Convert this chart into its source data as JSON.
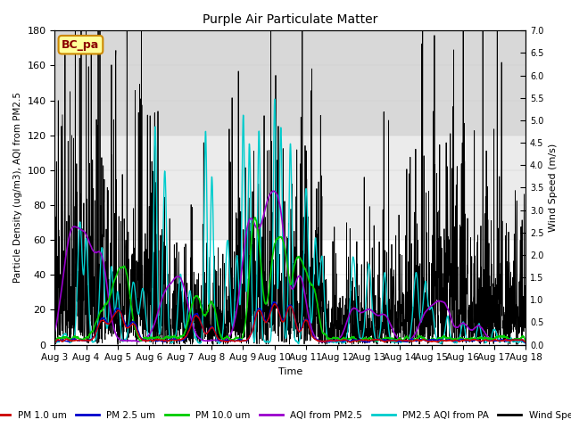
{
  "title": "Purple Air Particulate Matter",
  "xlabel": "Time",
  "ylabel_left": "Particle Density (ug/m3), AQI from PM2.5",
  "ylabel_right": "Wind Speed (m/s)",
  "ylim_left": [
    0,
    180
  ],
  "ylim_right": [
    0,
    7.0
  ],
  "yticks_left": [
    0,
    20,
    40,
    60,
    80,
    100,
    120,
    140,
    160,
    180
  ],
  "yticks_right": [
    0.0,
    0.5,
    1.0,
    1.5,
    2.0,
    2.5,
    3.0,
    3.5,
    4.0,
    4.5,
    5.0,
    5.5,
    6.0,
    6.5,
    7.0
  ],
  "xtick_labels": [
    "Aug 3",
    "Aug 4",
    "Aug 5",
    "Aug 6",
    "Aug 7",
    "Aug 8",
    "Aug 9",
    "Aug 10",
    "Aug 11",
    "Aug 12",
    "Aug 13",
    "Aug 14",
    "Aug 15",
    "Aug 16",
    "Aug 17",
    "Aug 18"
  ],
  "annotation_text": "BC_pa",
  "annotation_facecolor": "#FFFF99",
  "annotation_edgecolor": "#CC8800",
  "annotation_textcolor": "#8B0000",
  "colors": {
    "pm1": "#cc0000",
    "pm25": "#0000cc",
    "pm10": "#00cc00",
    "aqi_pm25": "#9900cc",
    "aqi_pa": "#00cccc",
    "wind": "#000000"
  },
  "legend_labels": [
    "PM 1.0 um",
    "PM 2.5 um",
    "PM 10.0 um",
    "AQI from PM2.5",
    "PM2.5 AQI from PA",
    "Wind Speed"
  ],
  "bg_bands": [
    {
      "ymin": 0,
      "ymax": 60,
      "color": "#ffffff"
    },
    {
      "ymin": 60,
      "ymax": 120,
      "color": "#ebebeb"
    },
    {
      "ymin": 120,
      "ymax": 180,
      "color": "#d8d8d8"
    }
  ],
  "n_days": 15,
  "seed": 123
}
